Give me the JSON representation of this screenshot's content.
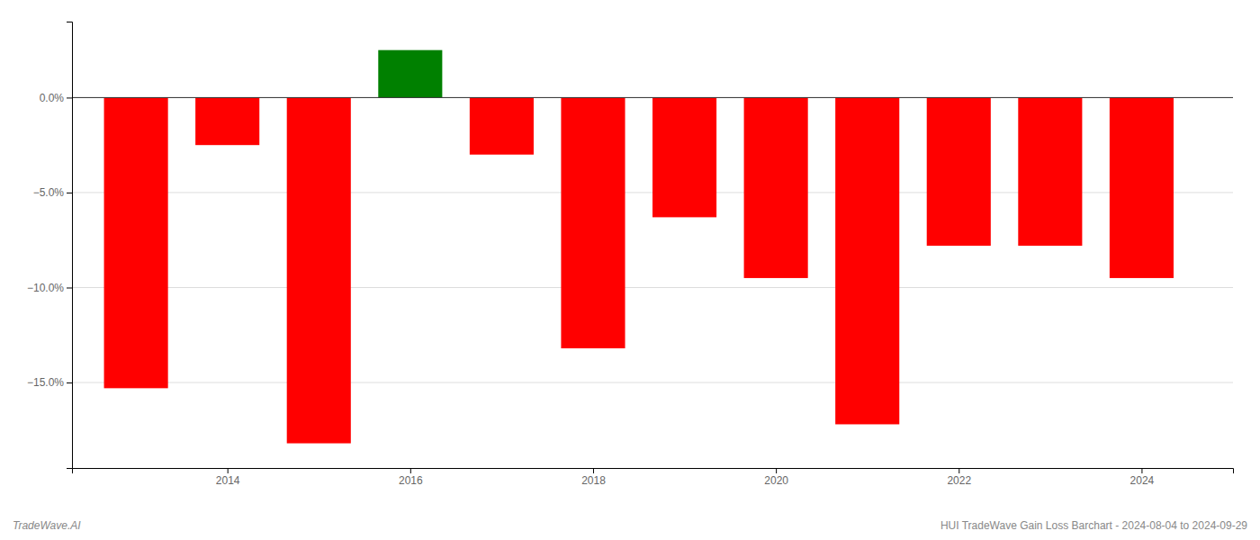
{
  "chart_data": {
    "type": "bar",
    "title": "HUI TradeWave Gain Loss Barchart - 2024-08-04 to 2024-09-29",
    "annotations": [
      "TradeWave.AI"
    ],
    "x": [
      2013,
      2014,
      2015,
      2016,
      2017,
      2018,
      2019,
      2020,
      2021,
      2022,
      2023,
      2024
    ],
    "values": [
      -15.3,
      -2.5,
      -18.2,
      2.5,
      -3.0,
      -13.2,
      -6.3,
      -9.5,
      -17.2,
      -7.8,
      -7.8,
      -9.5
    ],
    "colors": [
      "#ff0000",
      "#ff0000",
      "#ff0000",
      "#008000",
      "#ff0000",
      "#ff0000",
      "#ff0000",
      "#ff0000",
      "#ff0000",
      "#ff0000",
      "#ff0000",
      "#ff0000"
    ],
    "xlim": [
      2012.3,
      2025.0
    ],
    "xticks": [
      2014,
      2016,
      2018,
      2020,
      2022,
      2024
    ],
    "ylim": [
      -19.5,
      4.0
    ],
    "yticks": [
      {
        "value": 0.0,
        "label": "0.0%"
      },
      {
        "value": -5.0,
        "label": "−5.0%"
      },
      {
        "value": -10.0,
        "label": "−10.0%"
      },
      {
        "value": -15.0,
        "label": "−15.0%"
      }
    ],
    "grid": true
  }
}
